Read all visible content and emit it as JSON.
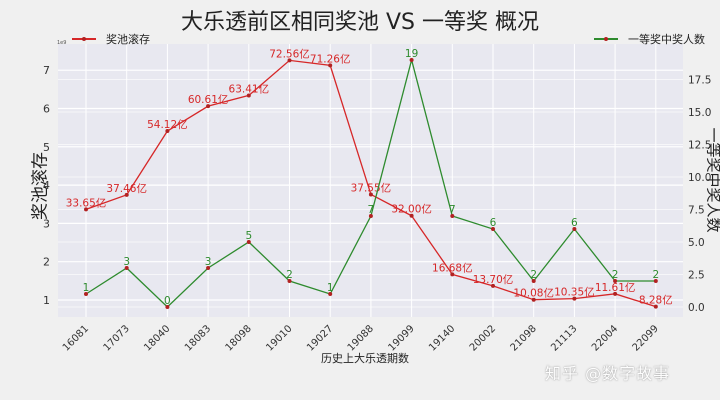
{
  "chart_data": {
    "type": "line",
    "title": "大乐透前区相同奖池 VS 一等奖 概况",
    "xlabel": "历史上大乐透期数",
    "ylabel_left": "奖池滚存",
    "ylabel_right": "一等奖中奖人数",
    "y_left_exponent": "1e9",
    "categories": [
      "16081",
      "17073",
      "18040",
      "18083",
      "18098",
      "19010",
      "19027",
      "19088",
      "19099",
      "19140",
      "20002",
      "21098",
      "21113",
      "22004",
      "22099"
    ],
    "series": [
      {
        "name": "奖池滚存",
        "axis": "left",
        "color": "#d62728",
        "values": [
          3.365,
          3.746,
          5.412,
          6.061,
          6.341,
          7.256,
          7.126,
          3.755,
          3.2,
          1.668,
          1.37,
          1.008,
          1.035,
          1.161,
          0.828
        ],
        "labels": [
          "33.65亿",
          "37.46亿",
          "54.12亿",
          "60.61亿",
          "63.41亿",
          "72.56亿",
          "71.26亿",
          "37.55亿",
          "32.00亿",
          "16.68亿",
          "13.70亿",
          "10.08亿",
          "10.35亿",
          "11.61亿",
          "8.28亿"
        ]
      },
      {
        "name": "一等奖中奖人数",
        "axis": "right",
        "color": "#2e8b2e",
        "values": [
          1,
          3,
          0,
          3,
          5,
          2,
          1,
          7,
          19,
          7,
          6,
          2,
          6,
          2,
          2
        ],
        "labels": [
          "1",
          "3",
          "0",
          "3",
          "5",
          "2",
          "1",
          "7",
          "19",
          "7",
          "6",
          "2",
          "6",
          "2",
          "2"
        ]
      }
    ],
    "y_left_ticks": [
      "1",
      "2",
      "3",
      "4",
      "5",
      "6",
      "7"
    ],
    "y_right_ticks": [
      "0.0",
      "2.5",
      "5.0",
      "7.5",
      "10.0",
      "12.5",
      "15.0",
      "17.5"
    ],
    "ylim_left": [
      0.6,
      7.5
    ],
    "ylim_right": [
      -0.6,
      20
    ],
    "grid": true,
    "legend_position": "top-left / top-right"
  },
  "legend": {
    "left_label": "奖池滚存",
    "right_label": "一等奖中奖人数"
  },
  "watermark": "知乎 @数字故事",
  "colors": {
    "pool_line": "#d62728",
    "winners_line": "#2e8b2e",
    "marker": "#b22222",
    "plot_bg": "#e8e8f0",
    "page_bg": "#f0f0f0",
    "grid": "#ffffff"
  }
}
